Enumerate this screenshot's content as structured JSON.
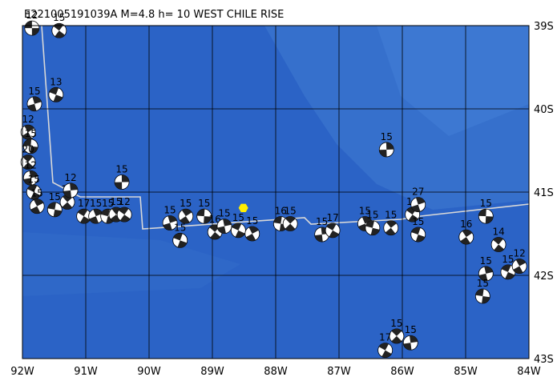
{
  "title": "E221005191039A M=4.8 h= 10 WEST CHILE RISE",
  "lon_ticks": [
    {
      "value": -92,
      "label": "92W"
    },
    {
      "value": -91,
      "label": "91W"
    },
    {
      "value": -90,
      "label": "90W"
    },
    {
      "value": -89,
      "label": "89W"
    },
    {
      "value": -88,
      "label": "88W"
    },
    {
      "value": -87,
      "label": "87W"
    },
    {
      "value": -86,
      "label": "86W"
    },
    {
      "value": -85,
      "label": "85W"
    },
    {
      "value": -84,
      "label": "84W"
    }
  ],
  "lat_ticks": [
    {
      "value": -39,
      "label": "39S"
    },
    {
      "value": -40,
      "label": "40S"
    },
    {
      "value": -41,
      "label": "41S"
    },
    {
      "value": -42,
      "label": "42S"
    },
    {
      "value": -43,
      "label": "43S"
    }
  ],
  "lonlim": [
    -92,
    -84
  ],
  "latlim": [
    -43,
    -39
  ],
  "epicenter": {
    "lon": -88.51,
    "lat": -41.19,
    "color": "#ffee00"
  },
  "events": [
    {
      "lon": -91.85,
      "lat": -39.03,
      "depth": 12
    },
    {
      "lon": -91.42,
      "lat": -39.06,
      "depth": 15
    },
    {
      "lon": -91.81,
      "lat": -39.94,
      "depth": 15
    },
    {
      "lon": -91.47,
      "lat": -39.83,
      "depth": 13
    },
    {
      "lon": -91.91,
      "lat": -40.28,
      "depth": 12
    },
    {
      "lon": -91.87,
      "lat": -40.45,
      "depth": 15
    },
    {
      "lon": -91.91,
      "lat": -40.64,
      "depth": 20
    },
    {
      "lon": -91.87,
      "lat": -40.83,
      "depth": 12
    },
    {
      "lon": -91.82,
      "lat": -41.0,
      "depth": 15
    },
    {
      "lon": -91.77,
      "lat": -41.17,
      "depth": 15
    },
    {
      "lon": -91.49,
      "lat": -41.21,
      "depth": 15
    },
    {
      "lon": -91.29,
      "lat": -41.12,
      "depth": 13
    },
    {
      "lon": -91.24,
      "lat": -40.98,
      "depth": 12
    },
    {
      "lon": -91.03,
      "lat": -41.29,
      "depth": 17
    },
    {
      "lon": -90.84,
      "lat": -41.29,
      "depth": 15
    },
    {
      "lon": -90.65,
      "lat": -41.29,
      "depth": 15
    },
    {
      "lon": -90.52,
      "lat": -41.27,
      "depth": 15
    },
    {
      "lon": -90.43,
      "lat": -40.88,
      "depth": 15
    },
    {
      "lon": -90.39,
      "lat": -41.27,
      "depth": 12
    },
    {
      "lon": -89.67,
      "lat": -41.37,
      "depth": 15
    },
    {
      "lon": -89.51,
      "lat": -41.58,
      "depth": 15
    },
    {
      "lon": -89.42,
      "lat": -41.29,
      "depth": 15
    },
    {
      "lon": -89.13,
      "lat": -41.29,
      "depth": 15
    },
    {
      "lon": -88.96,
      "lat": -41.48,
      "depth": 16
    },
    {
      "lon": -88.81,
      "lat": -41.41,
      "depth": 15
    },
    {
      "lon": -88.59,
      "lat": -41.46,
      "depth": 15
    },
    {
      "lon": -88.37,
      "lat": -41.5,
      "depth": 15
    },
    {
      "lon": -87.92,
      "lat": -41.38,
      "depth": 16
    },
    {
      "lon": -87.77,
      "lat": -41.38,
      "depth": 15
    },
    {
      "lon": -87.27,
      "lat": -41.51,
      "depth": 15
    },
    {
      "lon": -87.1,
      "lat": -41.46,
      "depth": 17
    },
    {
      "lon": -86.59,
      "lat": -41.38,
      "depth": 15
    },
    {
      "lon": -86.47,
      "lat": -41.43,
      "depth": 15
    },
    {
      "lon": -86.18,
      "lat": -41.43,
      "depth": 15
    },
    {
      "lon": -86.25,
      "lat": -40.49,
      "depth": 15
    },
    {
      "lon": -85.84,
      "lat": -41.27,
      "depth": 10
    },
    {
      "lon": -85.75,
      "lat": -41.15,
      "depth": 27
    },
    {
      "lon": -85.75,
      "lat": -41.51,
      "depth": 15
    },
    {
      "lon": -84.99,
      "lat": -41.54,
      "depth": 16
    },
    {
      "lon": -84.68,
      "lat": -41.29,
      "depth": 15
    },
    {
      "lon": -84.48,
      "lat": -41.63,
      "depth": 14
    },
    {
      "lon": -84.68,
      "lat": -41.98,
      "depth": 15
    },
    {
      "lon": -84.33,
      "lat": -41.96,
      "depth": 15
    },
    {
      "lon": -84.15,
      "lat": -41.89,
      "depth": 12
    },
    {
      "lon": -84.73,
      "lat": -42.25,
      "depth": 15
    },
    {
      "lon": -86.09,
      "lat": -42.73,
      "depth": 15
    },
    {
      "lon": -85.87,
      "lat": -42.81,
      "depth": 15
    },
    {
      "lon": -86.27,
      "lat": -42.9,
      "depth": 17
    }
  ]
}
